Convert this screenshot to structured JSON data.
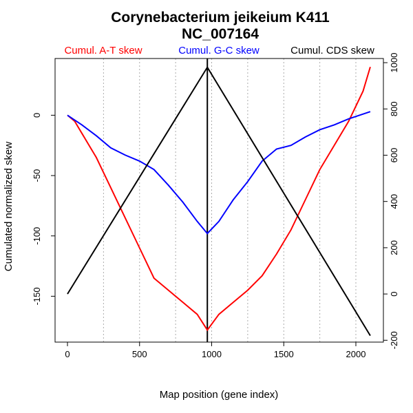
{
  "chart_data": {
    "type": "line",
    "title": "Corynebacterium jeikeium K411",
    "subtitle": "NC_007164",
    "x_label": "Map position (gene index)",
    "y_label": "Cumulated normalized skew",
    "xlim": [
      -86,
      2191
    ],
    "xticks": [
      0,
      500,
      1000,
      1500,
      2000
    ],
    "x_gridlines": [
      250,
      500,
      750,
      1000,
      1250,
      1500,
      1750,
      2000
    ],
    "ylim": [
      -188,
      47
    ],
    "yticks": [
      -150,
      -100,
      -50,
      0
    ],
    "y2lim": [
      -208,
      1018
    ],
    "y2ticks": [
      -200,
      0,
      200,
      400,
      600,
      800,
      1000
    ],
    "vline": 970,
    "series": [
      {
        "name": "Cumul. A-T skew",
        "color": "#ff0000",
        "x": [
          0,
          50,
          100,
          200,
          300,
          400,
          500,
          600,
          700,
          800,
          900,
          970,
          1050,
          1150,
          1250,
          1350,
          1450,
          1550,
          1650,
          1750,
          1850,
          1950,
          2050,
          2100
        ],
        "values": [
          0,
          -5,
          -15,
          -35,
          -60,
          -85,
          -110,
          -135,
          -145,
          -155,
          -165,
          -178,
          -165,
          -155,
          -145,
          -133,
          -115,
          -95,
          -70,
          -45,
          -25,
          -5,
          20,
          40
        ]
      },
      {
        "name": "Cumul. G-C skew",
        "color": "#0000ff",
        "x": [
          0,
          100,
          200,
          300,
          400,
          500,
          600,
          700,
          800,
          900,
          970,
          1050,
          1150,
          1250,
          1350,
          1450,
          1550,
          1650,
          1750,
          1850,
          1950,
          2100
        ],
        "values": [
          0,
          -8,
          -17,
          -27,
          -33,
          -38,
          -45,
          -58,
          -72,
          -88,
          -98,
          -88,
          -70,
          -55,
          -38,
          -28,
          -25,
          -18,
          -12,
          -8,
          -3,
          3
        ]
      },
      {
        "name": "Cumul. CDS skew",
        "color": "#000000",
        "axis": "y2",
        "x": [
          0,
          970,
          2100
        ],
        "values": [
          0,
          980,
          -180
        ]
      }
    ]
  }
}
